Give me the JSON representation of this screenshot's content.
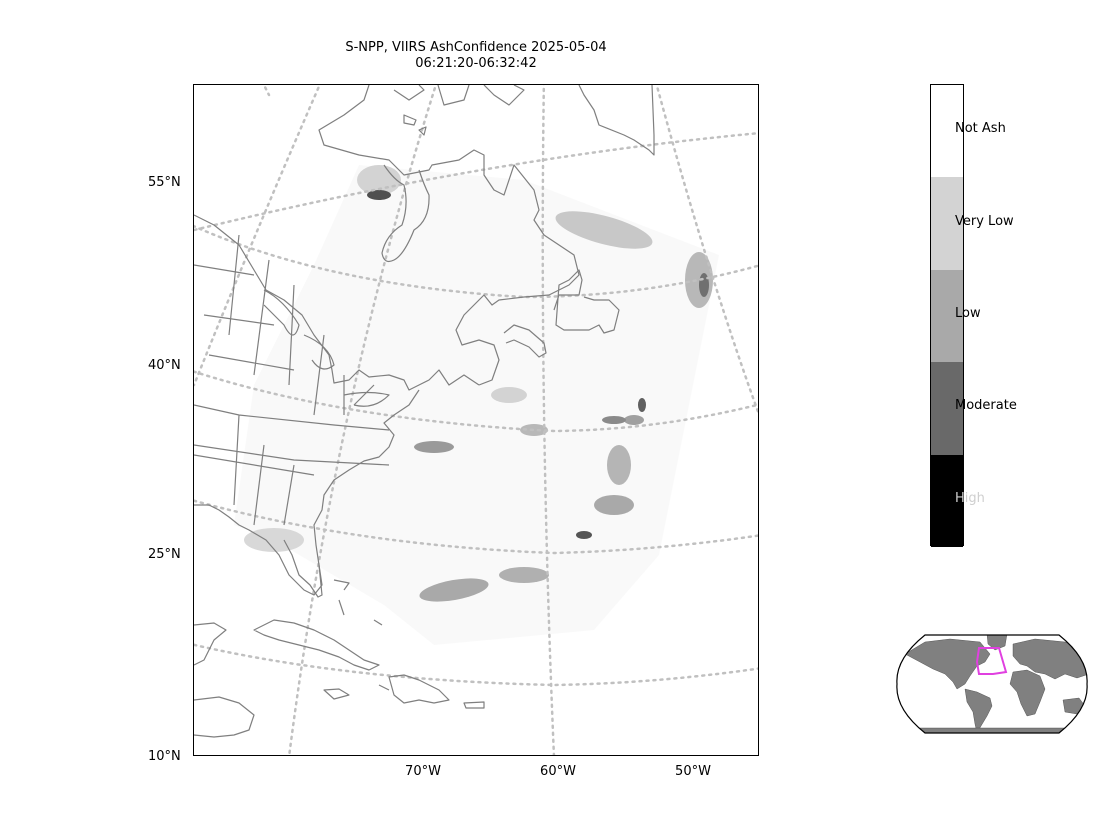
{
  "title": {
    "line1": "S-NPP, VIIRS AshConfidence 2025-05-04",
    "line2": "06:21:20-06:32:42"
  },
  "latitude_labels": [
    "55°N",
    "40°N",
    "25°N",
    "10°N"
  ],
  "longitude_labels": [
    "70°W",
    "60°W",
    "50°W"
  ],
  "colorbar": {
    "categories": [
      {
        "label": "Not Ash",
        "color": "#ffffff"
      },
      {
        "label": "Very Low",
        "color": "#d3d3d3"
      },
      {
        "label": "Low",
        "color": "#a9a9a9"
      },
      {
        "label": "Moderate",
        "color": "#696969"
      },
      {
        "label": "High",
        "color": "#000000"
      }
    ]
  },
  "colors": {
    "coastline": "#7f7f7f",
    "gridline": "#c0c0c0",
    "inset_land": "#808080",
    "inset_box": "#e040e0"
  }
}
